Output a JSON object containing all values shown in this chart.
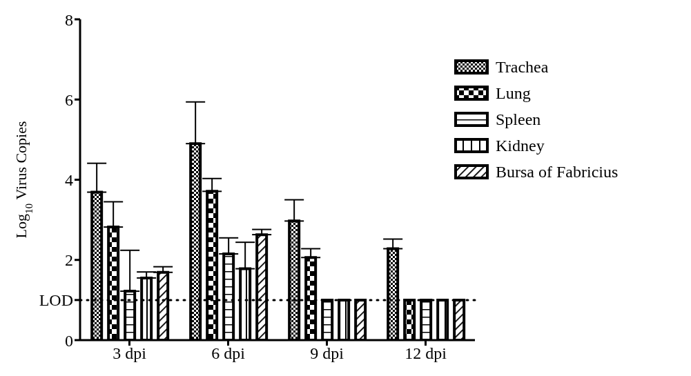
{
  "chart_data": {
    "type": "bar",
    "ylabel": "Log$_{10}$ Virus Copies",
    "categories": [
      "3 dpi",
      "6 dpi",
      "9 dpi",
      "12 dpi"
    ],
    "series": [
      {
        "name": "Trachea",
        "color": "#000000",
        "values": [
          3.69,
          4.9,
          2.97,
          2.28
        ],
        "errors": [
          [
            3.69,
            4.41
          ],
          [
            4.9,
            5.94
          ],
          [
            2.97,
            3.5
          ],
          [
            2.28,
            2.52
          ]
        ]
      },
      {
        "name": "Lung",
        "color": "#000000",
        "values": [
          2.82,
          3.71,
          2.06,
          1.0
        ],
        "errors": [
          [
            2.82,
            3.45
          ],
          [
            3.71,
            4.03
          ],
          [
            2.06,
            2.28
          ],
          null
        ]
      },
      {
        "name": "Spleen",
        "color": "#000000",
        "values": [
          1.22,
          2.15,
          1.0,
          1.0
        ],
        "errors": [
          [
            1.22,
            2.24
          ],
          [
            2.15,
            2.55
          ],
          null,
          null
        ]
      },
      {
        "name": "Kidney",
        "color": "#000000",
        "values": [
          1.55,
          1.78,
          1.0,
          1.0
        ],
        "errors": [
          [
            1.55,
            1.7
          ],
          [
            1.78,
            2.44
          ],
          null,
          null
        ]
      },
      {
        "name": "Bursa of Fabricius",
        "color": "#000000",
        "values": [
          1.69,
          2.63,
          1.0,
          1.0
        ],
        "errors": [
          [
            1.69,
            1.83
          ],
          [
            2.63,
            2.76
          ],
          null,
          null
        ]
      }
    ],
    "ylim": [
      0,
      8
    ],
    "yticks": [
      0,
      {
        "value": 1,
        "label": "LOD"
      },
      2,
      4,
      6,
      8
    ],
    "ref_lines": [
      {
        "axis": "y",
        "value": 1,
        "label": null,
        "line_style": "dotted",
        "color": "#000000"
      }
    ],
    "grid": false,
    "legend": "top right"
  }
}
